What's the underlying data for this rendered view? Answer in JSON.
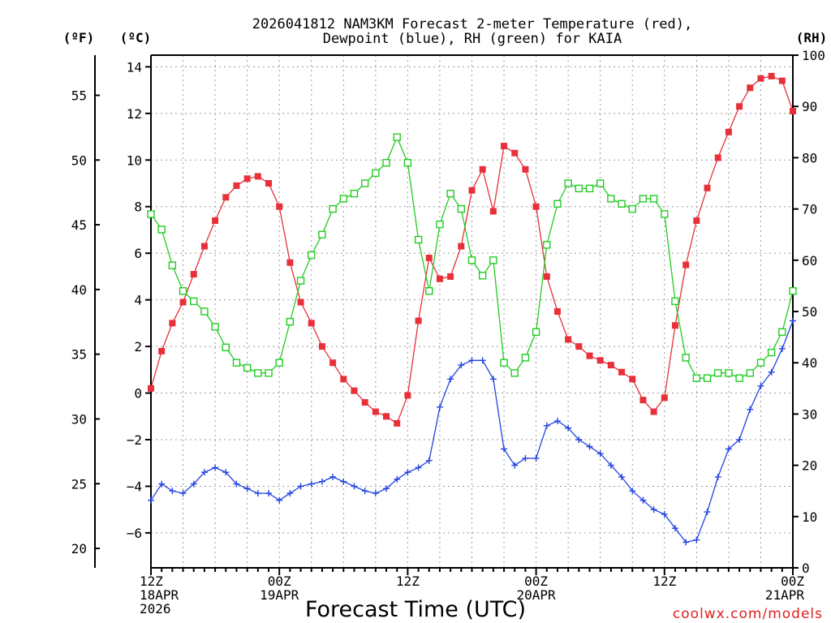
{
  "chart_data": {
    "type": "line",
    "title_line1": "2026041812 NAM3KM Forecast 2-meter Temperature (red),",
    "title_line2": "Dewpoint (blue), RH (green) for KAIA",
    "xlabel": "Forecast Time (UTC)",
    "credit": "coolwx.com/models",
    "left_outer_axis": {
      "label": "(ºF)",
      "ticks": [
        "55",
        "50",
        "45",
        "40",
        "35",
        "30",
        "25",
        "20"
      ],
      "tick_values": [
        55,
        50,
        45,
        40,
        35,
        30,
        25,
        20
      ]
    },
    "left_inner_axis": {
      "label": "(ºC)",
      "ticks": [
        "14",
        "12",
        "10",
        "8",
        "6",
        "4",
        "2",
        "0",
        "−2",
        "−4",
        "−6"
      ],
      "tick_values": [
        14,
        12,
        10,
        8,
        6,
        4,
        2,
        0,
        -2,
        -4,
        -6
      ],
      "ylim": [
        -7.5,
        14.5
      ]
    },
    "right_axis": {
      "label": "(RH)",
      "ticks": [
        "100",
        "90",
        "80",
        "70",
        "60",
        "50",
        "40",
        "30",
        "20",
        "10",
        "0"
      ],
      "tick_values": [
        100,
        90,
        80,
        70,
        60,
        50,
        40,
        30,
        20,
        10,
        0
      ],
      "ylim": [
        0,
        100
      ]
    },
    "x_axis": {
      "hours_range": [
        0,
        60
      ],
      "ticks": [
        {
          "hour": 0,
          "line1": "12Z",
          "line2": "18APR",
          "line3": "2026"
        },
        {
          "hour": 12,
          "line1": "00Z",
          "line2": "19APR",
          "line3": ""
        },
        {
          "hour": 24,
          "line1": "12Z",
          "line2": "",
          "line3": ""
        },
        {
          "hour": 36,
          "line1": "00Z",
          "line2": "20APR",
          "line3": ""
        },
        {
          "hour": 48,
          "line1": "12Z",
          "line2": "",
          "line3": ""
        },
        {
          "hour": 60,
          "line1": "00Z",
          "line2": "21APR",
          "line3": ""
        }
      ]
    },
    "series": [
      {
        "name": "Temperature",
        "units": "C",
        "color": "#e8303a",
        "marker": "filled-square",
        "values": [
          0.2,
          1.8,
          3.0,
          3.9,
          5.1,
          6.3,
          7.4,
          8.4,
          8.9,
          9.2,
          9.3,
          9.0,
          8.0,
          5.6,
          3.9,
          3.0,
          2.0,
          1.3,
          0.6,
          0.1,
          -0.4,
          -0.8,
          -1.0,
          -1.3,
          -0.1,
          3.1,
          5.8,
          4.9,
          5.0,
          6.3,
          8.7,
          9.6,
          7.8,
          10.6,
          10.3,
          9.6,
          8.0,
          5.0,
          3.5,
          2.3,
          2.0,
          1.6,
          1.4,
          1.2,
          0.9,
          0.6,
          -0.3,
          -0.8,
          -0.2,
          2.9,
          5.5,
          7.4,
          8.8,
          10.1,
          11.2,
          12.3,
          13.1,
          13.5,
          13.6,
          13.4,
          12.1
        ]
      },
      {
        "name": "Dewpoint",
        "units": "C",
        "color": "#2244e0",
        "marker": "plus",
        "values": [
          -4.6,
          -3.9,
          -4.2,
          -4.3,
          -3.9,
          -3.4,
          -3.2,
          -3.4,
          -3.9,
          -4.1,
          -4.3,
          -4.3,
          -4.6,
          -4.3,
          -4.0,
          -3.9,
          -3.8,
          -3.6,
          -3.8,
          -4.0,
          -4.2,
          -4.3,
          -4.1,
          -3.7,
          -3.4,
          -3.2,
          -2.9,
          -0.6,
          0.6,
          1.2,
          1.4,
          1.4,
          0.6,
          -2.4,
          -3.1,
          -2.8,
          -2.8,
          -1.4,
          -1.2,
          -1.5,
          -2.0,
          -2.3,
          -2.6,
          -3.1,
          -3.6,
          -4.2,
          -4.6,
          -5.0,
          -5.2,
          -5.8,
          -6.4,
          -6.3,
          -5.1,
          -3.6,
          -2.4,
          -2.0,
          -0.7,
          0.3,
          0.9,
          1.9,
          3.1
        ]
      },
      {
        "name": "RH",
        "units": "%",
        "color": "#22cc22",
        "marker": "open-square",
        "values": [
          69,
          66,
          59,
          54,
          52,
          50,
          47,
          43,
          40,
          39,
          38,
          38,
          40,
          48,
          56,
          61,
          65,
          70,
          72,
          73,
          75,
          77,
          79,
          84,
          79,
          64,
          54,
          67,
          73,
          70,
          60,
          57,
          60,
          40,
          38,
          41,
          46,
          63,
          71,
          75,
          74,
          74,
          75,
          72,
          71,
          70,
          72,
          72,
          69,
          52,
          41,
          37,
          37,
          38,
          38,
          37,
          38,
          40,
          42,
          46,
          54
        ]
      }
    ]
  }
}
